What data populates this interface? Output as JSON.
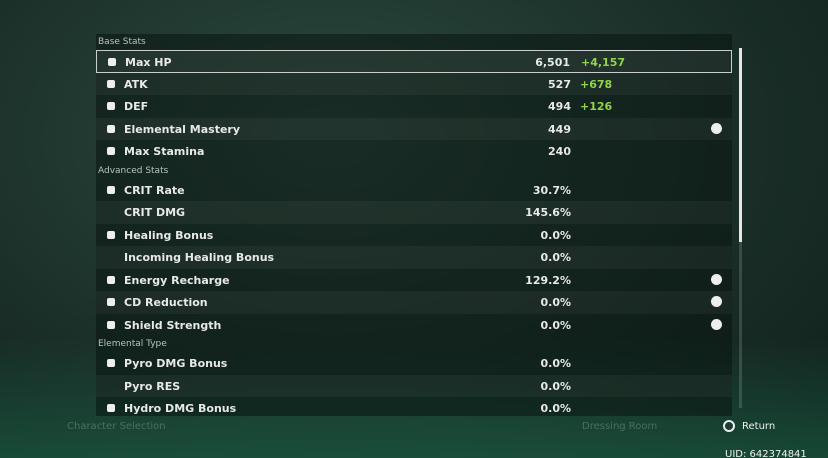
{
  "sections": [
    {
      "title": "Base Stats",
      "rows": [
        {
          "name": "Max HP",
          "value": "6,501",
          "bonus": "+4,157",
          "icon": true,
          "selected": true
        },
        {
          "name": "ATK",
          "value": "527",
          "bonus": "+678",
          "icon": true
        },
        {
          "name": "DEF",
          "value": "494",
          "bonus": "+126",
          "icon": true
        },
        {
          "name": "Elemental Mastery",
          "value": "449",
          "icon": true,
          "help": true
        },
        {
          "name": "Max Stamina",
          "value": "240",
          "icon": true
        }
      ]
    },
    {
      "title": "Advanced Stats",
      "rows": [
        {
          "name": "CRIT Rate",
          "value": "30.7%",
          "icon": true
        },
        {
          "name": "CRIT DMG",
          "value": "145.6%"
        },
        {
          "name": "Healing Bonus",
          "value": "0.0%",
          "icon": true
        },
        {
          "name": "Incoming Healing Bonus",
          "value": "0.0%"
        },
        {
          "name": "Energy Recharge",
          "value": "129.2%",
          "icon": true,
          "help": true
        },
        {
          "name": "CD Reduction",
          "value": "0.0%",
          "icon": true,
          "help": true
        },
        {
          "name": "Shield Strength",
          "value": "0.0%",
          "icon": true,
          "help": true
        }
      ]
    },
    {
      "title": "Elemental Type",
      "rows": [
        {
          "name": "Pyro DMG Bonus",
          "value": "0.0%",
          "icon": true
        },
        {
          "name": "Pyro RES",
          "value": "0.0%"
        },
        {
          "name": "Hydro DMG Bonus",
          "value": "0.0%",
          "icon": true
        }
      ]
    }
  ],
  "footer": {
    "left": "Character Selection",
    "middle": "Dressing Room",
    "return": "Return",
    "uid": "UID: 642374841"
  }
}
